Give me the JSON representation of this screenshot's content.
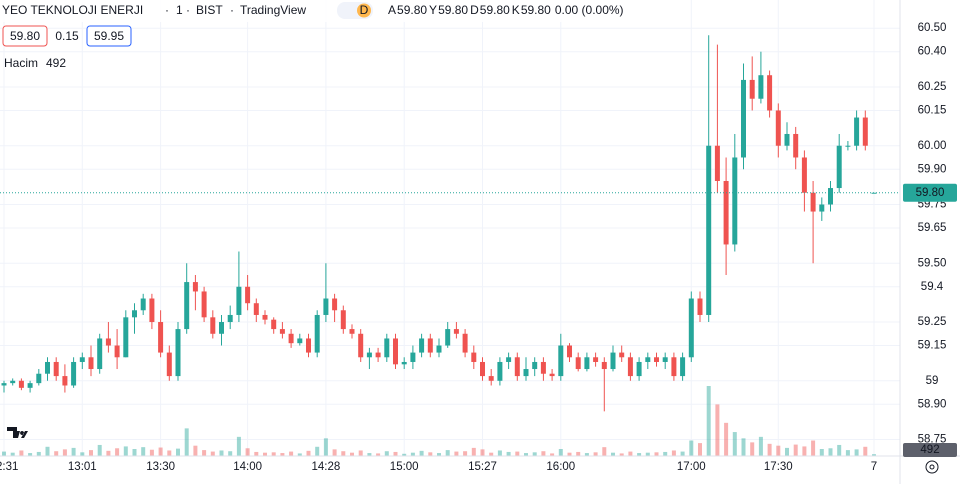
{
  "chart_data": {
    "type": "candlestick",
    "symbol": "YEO TEKNOLOJI ENERJI",
    "interval": "1",
    "exchange": "BIST",
    "source": "TradingView",
    "badge": "D",
    "ohlc_legend": [
      {
        "key": "A",
        "value": "59.80"
      },
      {
        "key": "Y",
        "value": "59.80"
      },
      {
        "key": "D",
        "value": "59.80"
      },
      {
        "key": "K",
        "value": "59.80"
      }
    ],
    "change": "0.00 (0.00%)",
    "bid": "59.80",
    "spread": "0.15",
    "ask": "59.95",
    "volume_name": "Hacim",
    "volume_value": "492",
    "up_color": "#26a69a",
    "down_color": "#ef5350",
    "ylim": [
      58.68,
      60.62
    ],
    "yticks": [
      {
        "value": 58.75,
        "label": "58.75"
      },
      {
        "value": 58.9,
        "label": "58.90"
      },
      59,
      59.15,
      59.25,
      59.4,
      {
        "value": 59.5,
        "label": "59.50"
      },
      59.65,
      59.75,
      {
        "value": 59.9,
        "label": "59.90"
      },
      {
        "value": 60,
        "label": "60.00"
      },
      60.15,
      60.25,
      {
        "value": 60.4,
        "label": "60.40"
      },
      {
        "value": 60.5,
        "label": "60.50"
      }
    ],
    "xticks": [
      {
        "value": 0,
        "label": "12:31"
      },
      {
        "value": 9,
        "label": "13:01"
      },
      {
        "value": 18,
        "label": "13:30"
      },
      {
        "value": 28,
        "label": "14:00"
      },
      {
        "value": 37,
        "label": "14:28"
      },
      {
        "value": 46,
        "label": "15:00"
      },
      {
        "value": 55,
        "label": "15:27"
      },
      {
        "value": 64,
        "label": "16:00"
      },
      {
        "value": 79,
        "label": "17:00"
      },
      {
        "value": 89,
        "label": "17:30"
      },
      {
        "value": 100,
        "label": "7"
      }
    ],
    "last_price": {
      "value": 59.8,
      "label": "59.80"
    },
    "last_volume": 492,
    "ohlc": [
      [
        58.98,
        59.0,
        58.95,
        58.99
      ],
      [
        58.99,
        59.01,
        58.98,
        59.0
      ],
      [
        59.0,
        59.01,
        58.96,
        58.97
      ],
      [
        58.97,
        59.0,
        58.95,
        58.99
      ],
      [
        58.99,
        59.05,
        58.98,
        59.03
      ],
      [
        59.03,
        59.1,
        59.0,
        59.08
      ],
      [
        59.08,
        59.1,
        59.0,
        59.02
      ],
      [
        59.02,
        59.07,
        58.95,
        58.98
      ],
      [
        58.98,
        59.1,
        58.97,
        59.08
      ],
      [
        59.08,
        59.12,
        59.05,
        59.1
      ],
      [
        59.1,
        59.15,
        59.02,
        59.05
      ],
      [
        59.05,
        59.2,
        59.03,
        59.18
      ],
      [
        59.18,
        59.25,
        59.12,
        59.15
      ],
      [
        59.15,
        59.22,
        59.05,
        59.1
      ],
      [
        59.1,
        59.3,
        59.1,
        59.27
      ],
      [
        59.27,
        59.33,
        59.2,
        59.3
      ],
      [
        59.3,
        59.37,
        59.28,
        59.35
      ],
      [
        59.35,
        59.37,
        59.22,
        59.25
      ],
      [
        59.25,
        59.3,
        59.1,
        59.12
      ],
      [
        59.12,
        59.15,
        59.0,
        59.02
      ],
      [
        59.02,
        59.25,
        59.0,
        59.22
      ],
      [
        59.22,
        59.5,
        59.2,
        59.42
      ],
      [
        59.42,
        59.45,
        59.3,
        59.38
      ],
      [
        59.38,
        59.4,
        59.25,
        59.27
      ],
      [
        59.27,
        59.3,
        59.18,
        59.2
      ],
      [
        59.2,
        59.28,
        59.15,
        59.25
      ],
      [
        59.25,
        59.32,
        59.22,
        59.28
      ],
      [
        59.28,
        59.55,
        59.25,
        59.4
      ],
      [
        59.4,
        59.45,
        59.3,
        59.33
      ],
      [
        59.33,
        59.35,
        59.25,
        59.28
      ],
      [
        59.28,
        59.3,
        59.24,
        59.26
      ],
      [
        59.26,
        59.27,
        59.2,
        59.22
      ],
      [
        59.22,
        59.25,
        59.18,
        59.2
      ],
      [
        59.2,
        59.22,
        59.14,
        59.16
      ],
      [
        59.16,
        59.2,
        59.15,
        59.18
      ],
      [
        59.18,
        59.2,
        59.1,
        59.12
      ],
      [
        59.12,
        59.3,
        59.1,
        59.28
      ],
      [
        59.28,
        59.5,
        59.25,
        59.35
      ],
      [
        59.35,
        59.37,
        59.25,
        59.3
      ],
      [
        59.3,
        59.32,
        59.2,
        59.22
      ],
      [
        59.22,
        59.24,
        59.18,
        59.2
      ],
      [
        59.2,
        59.22,
        59.08,
        59.1
      ],
      [
        59.1,
        59.14,
        59.05,
        59.12
      ],
      [
        59.12,
        59.14,
        59.08,
        59.1
      ],
      [
        59.1,
        59.2,
        59.08,
        59.18
      ],
      [
        59.18,
        59.2,
        59.05,
        59.07
      ],
      [
        59.07,
        59.1,
        59.05,
        59.08
      ],
      [
        59.08,
        59.15,
        59.05,
        59.12
      ],
      [
        59.12,
        59.2,
        59.1,
        59.18
      ],
      [
        59.18,
        59.2,
        59.1,
        59.12
      ],
      [
        59.12,
        59.18,
        59.1,
        59.15
      ],
      [
        59.15,
        59.25,
        59.14,
        59.22
      ],
      [
        59.22,
        59.25,
        59.18,
        59.2
      ],
      [
        59.2,
        59.22,
        59.1,
        59.12
      ],
      [
        59.12,
        59.15,
        59.05,
        59.08
      ],
      [
        59.08,
        59.1,
        59.0,
        59.02
      ],
      [
        59.02,
        59.05,
        58.98,
        59.0
      ],
      [
        59.0,
        59.1,
        58.98,
        59.08
      ],
      [
        59.08,
        59.12,
        59.05,
        59.1
      ],
      [
        59.1,
        59.12,
        59.0,
        59.02
      ],
      [
        59.02,
        59.1,
        59.0,
        59.05
      ],
      [
        59.05,
        59.1,
        59.02,
        59.08
      ],
      [
        59.08,
        59.1,
        59.0,
        59.03
      ],
      [
        59.03,
        59.05,
        59.0,
        59.02
      ],
      [
        59.02,
        59.2,
        59.0,
        59.15
      ],
      [
        59.15,
        59.16,
        59.08,
        59.1
      ],
      [
        59.1,
        59.12,
        59.04,
        59.05
      ],
      [
        59.05,
        59.12,
        59.04,
        59.1
      ],
      [
        59.1,
        59.12,
        59.06,
        59.08
      ],
      [
        59.08,
        59.1,
        58.87,
        59.05
      ],
      [
        59.05,
        59.15,
        59.04,
        59.12
      ],
      [
        59.12,
        59.15,
        59.08,
        59.1
      ],
      [
        59.1,
        59.12,
        59.0,
        59.02
      ],
      [
        59.02,
        59.1,
        59.0,
        59.08
      ],
      [
        59.08,
        59.12,
        59.05,
        59.1
      ],
      [
        59.1,
        59.12,
        59.06,
        59.08
      ],
      [
        59.08,
        59.12,
        59.05,
        59.1
      ],
      [
        59.1,
        59.12,
        59.0,
        59.02
      ],
      [
        59.02,
        59.12,
        59.0,
        59.1
      ],
      [
        59.1,
        59.38,
        59.08,
        59.35
      ],
      [
        59.35,
        59.38,
        59.25,
        59.28
      ],
      [
        59.28,
        60.47,
        59.25,
        60.0
      ],
      [
        60.0,
        60.43,
        59.8,
        59.85
      ],
      [
        59.85,
        59.95,
        59.45,
        59.58
      ],
      [
        59.58,
        60.05,
        59.55,
        59.95
      ],
      [
        59.95,
        60.35,
        59.9,
        60.28
      ],
      [
        60.28,
        60.38,
        60.15,
        60.2
      ],
      [
        60.2,
        60.4,
        60.18,
        60.3
      ],
      [
        60.3,
        60.32,
        60.12,
        60.15
      ],
      [
        60.15,
        60.18,
        59.95,
        60.0
      ],
      [
        60.0,
        60.1,
        59.98,
        60.05
      ],
      [
        60.05,
        60.08,
        59.9,
        59.95
      ],
      [
        59.95,
        59.98,
        59.72,
        59.8
      ],
      [
        59.8,
        59.85,
        59.5,
        59.72
      ],
      [
        59.72,
        59.78,
        59.68,
        59.75
      ],
      [
        59.75,
        59.85,
        59.72,
        59.82
      ],
      [
        59.82,
        60.05,
        59.8,
        60.0
      ],
      [
        60.0,
        60.02,
        59.98,
        60.0
      ],
      [
        60.0,
        60.15,
        59.98,
        60.12
      ],
      [
        60.12,
        60.15,
        59.98,
        60.0
      ],
      [
        59.8,
        59.8,
        59.8,
        59.8
      ]
    ],
    "volume": [
      1200,
      900,
      1500,
      800,
      1100,
      2500,
      1300,
      1800,
      2200,
      1000,
      1600,
      3000,
      1400,
      2100,
      2600,
      1900,
      2400,
      1700,
      2300,
      1500,
      2000,
      7500,
      2800,
      1600,
      1200,
      1500,
      1300,
      5200,
      2100,
      1100,
      900,
      1000,
      800,
      1200,
      700,
      1400,
      2500,
      4800,
      1800,
      1300,
      900,
      1500,
      800,
      700,
      1300,
      1100,
      600,
      900,
      1400,
      1000,
      800,
      1600,
      1200,
      1300,
      2200,
      1800,
      900,
      1500,
      1100,
      1200,
      800,
      1000,
      1300,
      700,
      1900,
      900,
      1100,
      800,
      1000,
      2400,
      900,
      700,
      1200,
      800,
      900,
      1000,
      1100,
      1500,
      1200,
      4200,
      3500,
      19000,
      14000,
      9000,
      6500,
      4800,
      3700,
      5200,
      3300,
      2800,
      2200,
      3100,
      2600,
      4200,
      1900,
      2100,
      3000,
      1600,
      1800,
      2500,
      492
    ]
  }
}
